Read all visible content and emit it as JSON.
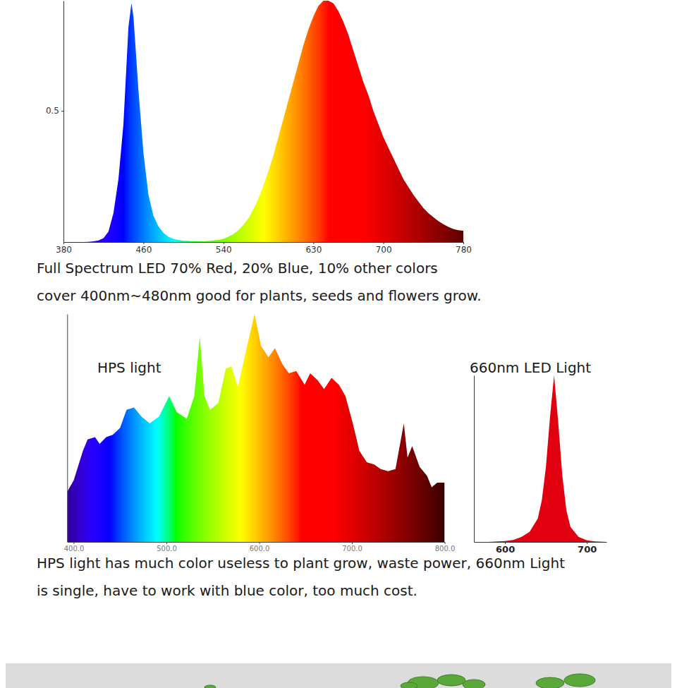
{
  "chart_data": [
    {
      "type": "area",
      "x": [
        380,
        385,
        390,
        395,
        400,
        405,
        410,
        415,
        420,
        425,
        430,
        435,
        440,
        445,
        448,
        450,
        455,
        460,
        465,
        470,
        475,
        480,
        485,
        490,
        495,
        500,
        505,
        510,
        515,
        520,
        525,
        530,
        535,
        540,
        545,
        550,
        555,
        560,
        565,
        570,
        575,
        580,
        585,
        590,
        595,
        600,
        605,
        610,
        615,
        620,
        625,
        630,
        635,
        640,
        645,
        650,
        655,
        660,
        665,
        670,
        675,
        680,
        685,
        690,
        695,
        700,
        705,
        710,
        715,
        720,
        725,
        730,
        735,
        740,
        745,
        750,
        755,
        760,
        765,
        770,
        775,
        780
      ],
      "values": [
        0,
        0,
        0,
        0,
        0,
        0.001,
        0.003,
        0.006,
        0.015,
        0.04,
        0.11,
        0.24,
        0.45,
        0.82,
        0.91,
        0.86,
        0.58,
        0.34,
        0.18,
        0.1,
        0.06,
        0.035,
        0.02,
        0.012,
        0.008,
        0.005,
        0.004,
        0.003,
        0.003,
        0.003,
        0.004,
        0.006,
        0.008,
        0.012,
        0.02,
        0.03,
        0.045,
        0.065,
        0.09,
        0.125,
        0.165,
        0.215,
        0.27,
        0.33,
        0.4,
        0.47,
        0.54,
        0.61,
        0.68,
        0.75,
        0.81,
        0.86,
        0.9,
        0.92,
        0.92,
        0.91,
        0.88,
        0.84,
        0.79,
        0.73,
        0.67,
        0.61,
        0.56,
        0.5,
        0.45,
        0.4,
        0.36,
        0.32,
        0.28,
        0.24,
        0.21,
        0.18,
        0.155,
        0.13,
        0.11,
        0.095,
        0.08,
        0.068,
        0.058,
        0.05,
        0.045,
        0.043
      ],
      "xlim": [
        380,
        780
      ],
      "xticks": [
        380,
        460,
        540,
        630,
        700,
        780
      ],
      "ylim": [
        0,
        0.92
      ],
      "yticks": [
        0.5
      ],
      "annotations": [
        "Full Spectrum LED 70% Red, 20% Blue, 10% other colors",
        "cover 400nm~480nm good for plants, seeds and flowers grow."
      ]
    },
    {
      "type": "area",
      "title": "HPS light",
      "x": [
        393,
        400,
        410,
        415,
        423,
        428,
        435,
        442,
        450,
        457,
        465,
        473,
        482,
        492,
        503,
        511,
        522,
        530,
        536,
        541,
        547,
        556,
        564,
        570,
        577,
        587,
        595,
        602,
        610,
        617,
        625,
        632,
        640,
        649,
        655,
        663,
        670,
        678,
        686,
        693,
        701,
        708,
        716,
        724,
        731,
        739,
        747,
        756,
        760,
        765,
        773,
        781,
        786,
        792,
        800
      ],
      "values": [
        0.22,
        0.27,
        0.4,
        0.45,
        0.46,
        0.43,
        0.46,
        0.47,
        0.5,
        0.58,
        0.59,
        0.55,
        0.52,
        0.55,
        0.64,
        0.57,
        0.54,
        0.64,
        0.9,
        0.64,
        0.58,
        0.61,
        0.76,
        0.77,
        0.68,
        0.86,
        1.0,
        0.86,
        0.81,
        0.85,
        0.78,
        0.74,
        0.75,
        0.69,
        0.74,
        0.71,
        0.67,
        0.72,
        0.69,
        0.64,
        0.52,
        0.4,
        0.35,
        0.34,
        0.32,
        0.31,
        0.32,
        0.52,
        0.37,
        0.42,
        0.33,
        0.29,
        0.24,
        0.26,
        0.26
      ],
      "xlim": [
        393,
        800
      ],
      "xticks": [
        {
          "value": 400,
          "label": "400.0"
        },
        {
          "value": 500,
          "label": "500.0"
        },
        {
          "value": 600,
          "label": "600.0"
        },
        {
          "value": 700,
          "label": "700.0"
        },
        {
          "value": 800,
          "label": "800.0"
        }
      ],
      "ylim": [
        0,
        1
      ],
      "tick_labels": "x",
      "annotations": [
        "HPS light has much color useless to plant grow, waste power, 660nm Light",
        "is single, have to work with blue color, too much cost."
      ]
    },
    {
      "type": "area",
      "title": "660nm LED Light",
      "x": [
        562,
        580,
        600,
        610,
        620,
        630,
        640,
        645,
        650,
        655,
        660,
        665,
        670,
        675,
        680,
        690,
        700,
        710,
        724
      ],
      "values": [
        0,
        0,
        0.005,
        0.012,
        0.03,
        0.06,
        0.14,
        0.25,
        0.45,
        0.75,
        1.0,
        0.72,
        0.4,
        0.19,
        0.09,
        0.03,
        0.01,
        0.003,
        0
      ],
      "color": "#e0000f",
      "xlim": [
        562,
        724
      ],
      "xticks": [
        600,
        700
      ],
      "ylim": [
        0,
        1
      ],
      "tick_labels": "x"
    }
  ]
}
